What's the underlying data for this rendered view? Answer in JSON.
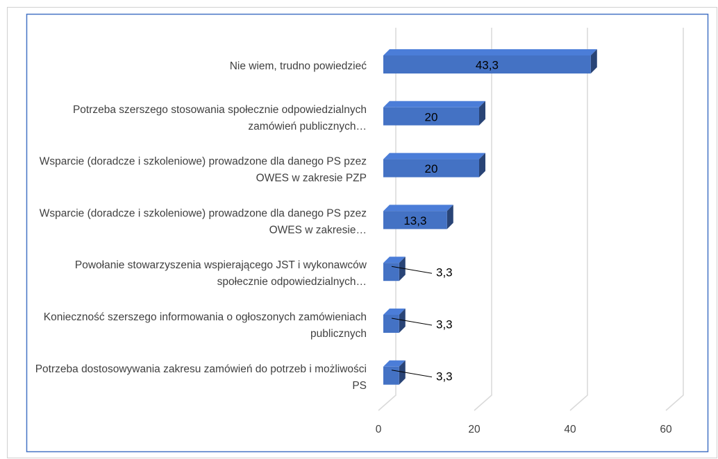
{
  "chart_data": {
    "type": "bar3d_horizontal",
    "categories": [
      "Nie wiem, trudno powiedzieć",
      "Potrzeba szerszego stosowania społecznie odpowiedzialnych zamówień publicznych…",
      "Wsparcie (doradcze i szkoleniowe) prowadzone dla danego PS pzez OWES w zakresie PZP",
      "Wsparcie (doradcze i szkoleniowe) prowadzone dla danego PS pzez OWES w zakresie…",
      "Powołanie stowarzyszenia wspierającego JST i wykonawców społecznie odpowiedzialnych…",
      "Konieczność szerszego informowania o ogłoszonych zamówieniach publicznych",
      "Potrzeba dostosowywania zakresu zamówień do potrzeb i możliwości PS"
    ],
    "values": [
      43.3,
      20,
      20,
      13.3,
      3.3,
      3.3,
      3.3
    ],
    "value_labels": [
      "43,3",
      "20",
      "20",
      "13,3",
      "3,3",
      "3,3",
      "3,3"
    ],
    "color": "#4472c4",
    "xlim": [
      0,
      60
    ],
    "xticks": [
      0,
      20,
      40,
      60
    ],
    "grid": true
  }
}
